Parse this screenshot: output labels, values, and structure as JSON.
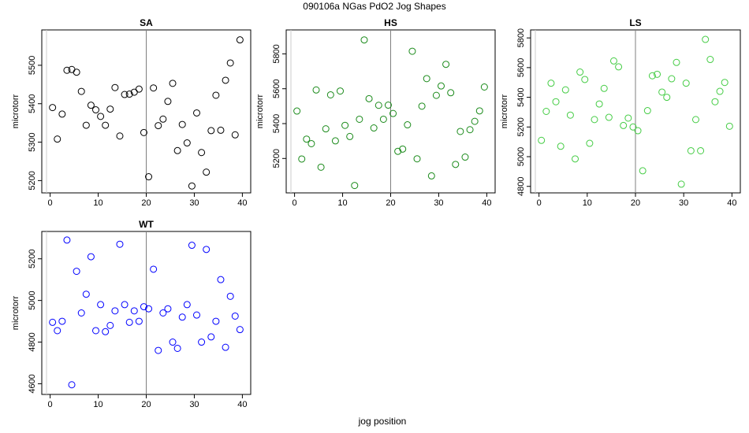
{
  "title": "090106a   NGas PdO2 Jog Shapes",
  "xlabel": "jog position",
  "chart_data": [
    {
      "type": "scatter",
      "title": "SA",
      "ylabel": "microtorr",
      "color": "#000000",
      "xlim": [
        0,
        40
      ],
      "ylim": [
        5185,
        5575
      ],
      "xticks": [
        0,
        10,
        20,
        30,
        40
      ],
      "yticks": [
        5200,
        5300,
        5400,
        5500
      ],
      "vline": 20,
      "x": [
        0.5,
        1.5,
        2.5,
        3.5,
        4.5,
        5.5,
        6.5,
        7.5,
        8.5,
        9.5,
        10.5,
        11.5,
        12.5,
        13.5,
        14.5,
        15.5,
        16.5,
        17.5,
        18.5,
        19.5,
        20.5,
        21.5,
        22.5,
        23.5,
        24.5,
        25.5,
        26.5,
        27.5,
        28.5,
        29.5,
        30.5,
        31.5,
        32.5,
        33.5,
        34.5,
        35.5,
        36.5,
        37.5,
        38.5,
        39.5
      ],
      "y": [
        5390,
        5308,
        5373,
        5487,
        5489,
        5482,
        5432,
        5344,
        5396,
        5384,
        5367,
        5344,
        5386,
        5442,
        5316,
        5424,
        5425,
        5430,
        5438,
        5325,
        5210,
        5441,
        5343,
        5360,
        5406,
        5453,
        5278,
        5346,
        5298,
        5186,
        5376,
        5273,
        5222,
        5330,
        5422,
        5331,
        5461,
        5506,
        5319,
        5566
      ]
    },
    {
      "type": "scatter",
      "title": "HS",
      "ylabel": "microtorr",
      "color": "#1a8a1a",
      "xlim": [
        0,
        40
      ],
      "ylim": [
        5040,
        5900
      ],
      "xticks": [
        0,
        10,
        20,
        30,
        40
      ],
      "yticks": [
        5200,
        5400,
        5600,
        5800
      ],
      "vline": 20,
      "x": [
        0.5,
        1.5,
        2.5,
        3.5,
        4.5,
        5.5,
        6.5,
        7.5,
        8.5,
        9.5,
        10.5,
        11.5,
        12.5,
        13.5,
        14.5,
        15.5,
        16.5,
        17.5,
        18.5,
        19.5,
        20.5,
        21.5,
        22.5,
        23.5,
        24.5,
        25.5,
        26.5,
        27.5,
        28.5,
        29.5,
        30.5,
        31.5,
        32.5,
        33.5,
        34.5,
        35.5,
        36.5,
        37.5,
        38.5,
        39.5
      ],
      "y": [
        5472,
        5197,
        5311,
        5285,
        5593,
        5150,
        5370,
        5565,
        5301,
        5587,
        5390,
        5326,
        5045,
        5425,
        5880,
        5543,
        5375,
        5505,
        5425,
        5506,
        5458,
        5241,
        5254,
        5393,
        5815,
        5198,
        5500,
        5658,
        5100,
        5562,
        5616,
        5740,
        5577,
        5166,
        5355,
        5208,
        5365,
        5413,
        5473,
        5610
      ]
    },
    {
      "type": "scatter",
      "title": "LS",
      "ylabel": "microtorr",
      "color": "#44cc44",
      "xlim": [
        0,
        40
      ],
      "ylim": [
        4800,
        5810
      ],
      "xticks": [
        0,
        10,
        20,
        30,
        40
      ],
      "yticks": [
        4800,
        5000,
        5200,
        5400,
        5600,
        5800
      ],
      "vline": 20,
      "x": [
        0.5,
        1.5,
        2.5,
        3.5,
        4.5,
        5.5,
        6.5,
        7.5,
        8.5,
        9.5,
        10.5,
        11.5,
        12.5,
        13.5,
        14.5,
        15.5,
        16.5,
        17.5,
        18.5,
        19.5,
        20.5,
        21.5,
        22.5,
        23.5,
        24.5,
        25.5,
        26.5,
        27.5,
        28.5,
        29.5,
        30.5,
        31.5,
        32.5,
        33.5,
        34.5,
        35.5,
        36.5,
        37.5,
        38.5,
        39.5
      ],
      "y": [
        5110,
        5305,
        5495,
        5370,
        5070,
        5450,
        5280,
        4985,
        5570,
        5520,
        5090,
        5250,
        5355,
        5460,
        5265,
        5645,
        5605,
        5210,
        5260,
        5200,
        5175,
        4905,
        5310,
        5545,
        5555,
        5435,
        5400,
        5525,
        5635,
        4815,
        5495,
        5040,
        5250,
        5040,
        5790,
        5655,
        5370,
        5440,
        5500,
        5205
      ]
    },
    {
      "type": "scatter",
      "title": "WT",
      "ylabel": "microtorr",
      "color": "#0000ff",
      "xlim": [
        0,
        40
      ],
      "ylim": [
        4580,
        5300
      ],
      "xticks": [
        0,
        10,
        20,
        30,
        40
      ],
      "yticks": [
        4600,
        4800,
        5000,
        5200
      ],
      "vline": 20,
      "x": [
        0.5,
        1.5,
        2.5,
        3.5,
        4.5,
        5.5,
        6.5,
        7.5,
        8.5,
        9.5,
        10.5,
        11.5,
        12.5,
        13.5,
        14.5,
        15.5,
        16.5,
        17.5,
        18.5,
        19.5,
        20.5,
        21.5,
        22.5,
        23.5,
        24.5,
        25.5,
        26.5,
        27.5,
        28.5,
        29.5,
        30.5,
        31.5,
        32.5,
        33.5,
        34.5,
        35.5,
        36.5,
        37.5,
        38.5,
        39.5
      ],
      "y": [
        4895,
        4855,
        4900,
        5290,
        4595,
        5140,
        4940,
        5030,
        5210,
        4855,
        4980,
        4850,
        4880,
        4950,
        5270,
        4980,
        4895,
        4950,
        4900,
        4970,
        4960,
        5150,
        4760,
        4940,
        4960,
        4800,
        4770,
        4920,
        4980,
        5265,
        4930,
        4800,
        5245,
        4825,
        4900,
        5100,
        4775,
        5020,
        4925,
        4860
      ]
    }
  ]
}
